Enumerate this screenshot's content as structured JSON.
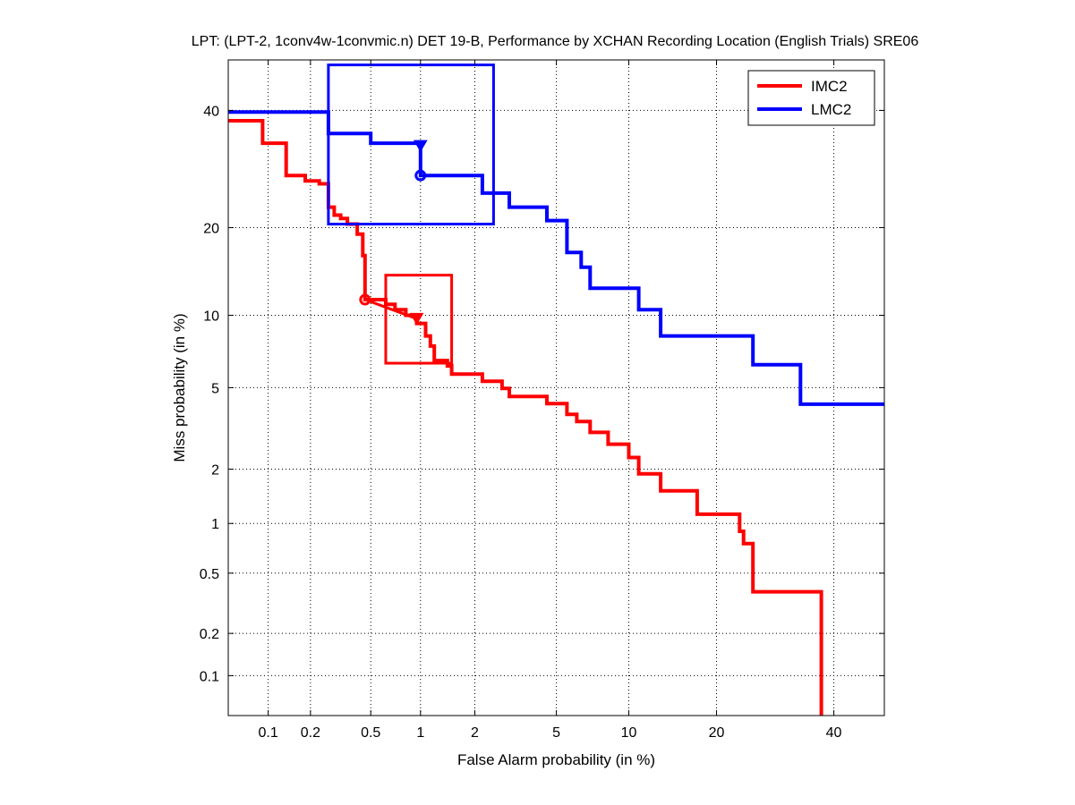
{
  "chart_data": {
    "type": "line",
    "subtype": "DET (normal deviate scale)",
    "title": "LPT: (LPT-2, 1conv4w-1convmic.n) DET 19-B,  Performance by XCHAN Recording Location (English Trials) SRE06",
    "xlabel": "False Alarm probability (in %)",
    "ylabel": "Miss probability (in %)",
    "xlim": [
      0.05,
      50
    ],
    "ylim": [
      0.05,
      50
    ],
    "xticks": [
      0.1,
      0.2,
      0.5,
      1,
      2,
      5,
      10,
      20,
      40
    ],
    "xtick_labels": [
      "0.1",
      "0.2",
      "0.5",
      "1",
      "2",
      "5",
      "10",
      "20",
      "40"
    ],
    "yticks": [
      0.1,
      0.2,
      0.5,
      1,
      2,
      5,
      10,
      20,
      40
    ],
    "ytick_labels": [
      "0.1",
      "0.2",
      "0.5",
      "1",
      "2",
      "5",
      "10",
      "20",
      "40"
    ],
    "grid": true,
    "legend_position": "top-right",
    "series": [
      {
        "name": "IMC2",
        "color": "#ff0000",
        "points": [
          [
            0.05,
            38.0
          ],
          [
            0.091,
            38.0
          ],
          [
            0.091,
            33.8
          ],
          [
            0.135,
            33.8
          ],
          [
            0.135,
            28.1
          ],
          [
            0.184,
            28.1
          ],
          [
            0.184,
            27.2
          ],
          [
            0.23,
            27.2
          ],
          [
            0.23,
            26.7
          ],
          [
            0.265,
            26.7
          ],
          [
            0.265,
            23.0
          ],
          [
            0.29,
            23.0
          ],
          [
            0.29,
            21.8
          ],
          [
            0.32,
            21.8
          ],
          [
            0.32,
            21.3
          ],
          [
            0.354,
            21.3
          ],
          [
            0.354,
            20.5
          ],
          [
            0.41,
            20.5
          ],
          [
            0.41,
            19.1
          ],
          [
            0.445,
            19.1
          ],
          [
            0.445,
            16.3
          ],
          [
            0.46,
            16.3
          ],
          [
            0.46,
            11.45
          ],
          [
            0.62,
            11.45
          ],
          [
            0.62,
            11.0
          ],
          [
            0.706,
            11.0
          ],
          [
            0.706,
            10.5
          ],
          [
            0.82,
            10.5
          ],
          [
            0.82,
            10.0
          ],
          [
            0.95,
            10.0
          ],
          [
            0.95,
            9.3
          ],
          [
            1.07,
            9.3
          ],
          [
            1.07,
            8.3
          ],
          [
            1.14,
            8.3
          ],
          [
            1.14,
            7.55
          ],
          [
            1.2,
            7.55
          ],
          [
            1.2,
            6.57
          ],
          [
            1.42,
            6.57
          ],
          [
            1.42,
            6.23
          ],
          [
            1.5,
            6.23
          ],
          [
            1.5,
            5.74
          ],
          [
            2.19,
            5.74
          ],
          [
            2.19,
            5.34
          ],
          [
            2.76,
            5.34
          ],
          [
            2.76,
            4.96
          ],
          [
            3.0,
            4.96
          ],
          [
            3.0,
            4.56
          ],
          [
            4.53,
            4.56
          ],
          [
            4.53,
            4.23
          ],
          [
            5.57,
            4.23
          ],
          [
            5.57,
            3.76
          ],
          [
            6.15,
            3.76
          ],
          [
            6.15,
            3.48
          ],
          [
            7.0,
            3.48
          ],
          [
            7.0,
            3.08
          ],
          [
            8.3,
            3.08
          ],
          [
            8.3,
            2.69
          ],
          [
            10.0,
            2.69
          ],
          [
            10.0,
            2.3
          ],
          [
            10.9,
            2.3
          ],
          [
            10.9,
            1.89
          ],
          [
            13.1,
            1.89
          ],
          [
            13.1,
            1.53
          ],
          [
            17.4,
            1.53
          ],
          [
            17.4,
            1.13
          ],
          [
            23.4,
            1.13
          ],
          [
            23.4,
            0.9
          ],
          [
            24.0,
            0.9
          ],
          [
            24.0,
            0.76
          ],
          [
            25.5,
            0.76
          ],
          [
            25.5,
            0.38
          ],
          [
            37.6,
            0.38
          ],
          [
            37.6,
            0.05
          ]
        ],
        "operating_points": {
          "actual_decision": [
            0.46,
            11.45
          ],
          "min_dcf": [
            0.95,
            9.7
          ]
        },
        "confidence_box": {
          "fa": [
            0.62,
            1.5
          ],
          "miss": [
            6.4,
            14.0
          ]
        }
      },
      {
        "name": "LMC2",
        "color": "#0000ff",
        "points": [
          [
            0.05,
            39.7
          ],
          [
            0.265,
            39.7
          ],
          [
            0.265,
            35.6
          ],
          [
            0.5,
            35.6
          ],
          [
            0.5,
            33.8
          ],
          [
            1.0,
            33.8
          ],
          [
            1.0,
            28.1
          ],
          [
            2.19,
            28.1
          ],
          [
            2.19,
            25.2
          ],
          [
            3.0,
            25.2
          ],
          [
            3.0,
            23.0
          ],
          [
            4.53,
            23.0
          ],
          [
            4.53,
            21.0
          ],
          [
            5.57,
            21.0
          ],
          [
            5.57,
            16.7
          ],
          [
            6.42,
            16.7
          ],
          [
            6.42,
            14.9
          ],
          [
            7.0,
            14.9
          ],
          [
            7.0,
            12.6
          ],
          [
            10.9,
            12.6
          ],
          [
            10.9,
            10.5
          ],
          [
            13.1,
            10.5
          ],
          [
            13.1,
            8.3
          ],
          [
            25.5,
            8.3
          ],
          [
            25.5,
            6.3
          ],
          [
            33.7,
            6.3
          ],
          [
            33.7,
            4.2
          ],
          [
            50.7,
            4.2
          ]
        ],
        "operating_points": {
          "actual_decision": [
            1.0,
            28.1
          ],
          "min_dcf": [
            1.0,
            33.3
          ]
        },
        "confidence_box": {
          "fa": [
            0.265,
            2.5
          ],
          "miss": [
            20.5,
            49.0
          ]
        }
      }
    ]
  }
}
